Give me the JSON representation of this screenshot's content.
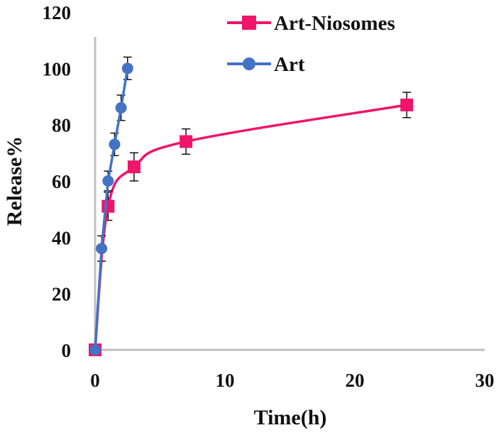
{
  "chart_data": {
    "type": "line",
    "title": "",
    "xlabel": "Time(h)",
    "ylabel": "Release%",
    "xlim": [
      0,
      30
    ],
    "ylim": [
      0,
      120
    ],
    "xticks": [
      0,
      10,
      20,
      30
    ],
    "yticks": [
      0,
      20,
      40,
      60,
      80,
      100,
      120
    ],
    "grid": false,
    "legend_position": "upper right",
    "series": [
      {
        "name": "Art-Niosomes",
        "color": "#f0146a",
        "marker": "square",
        "smooth": true,
        "x": [
          0,
          1,
          3,
          7,
          24
        ],
        "y": [
          0,
          51,
          65,
          74,
          87
        ],
        "error": [
          0,
          5,
          5,
          4.5,
          4.5
        ]
      },
      {
        "name": "Art",
        "color": "#4472c4",
        "marker": "circle",
        "smooth": false,
        "x": [
          0,
          0.5,
          1,
          1.5,
          2,
          2.5
        ],
        "y": [
          0,
          36,
          60,
          73,
          86,
          100
        ],
        "error": [
          0,
          4.5,
          3.5,
          4,
          4.5,
          4
        ]
      }
    ]
  }
}
